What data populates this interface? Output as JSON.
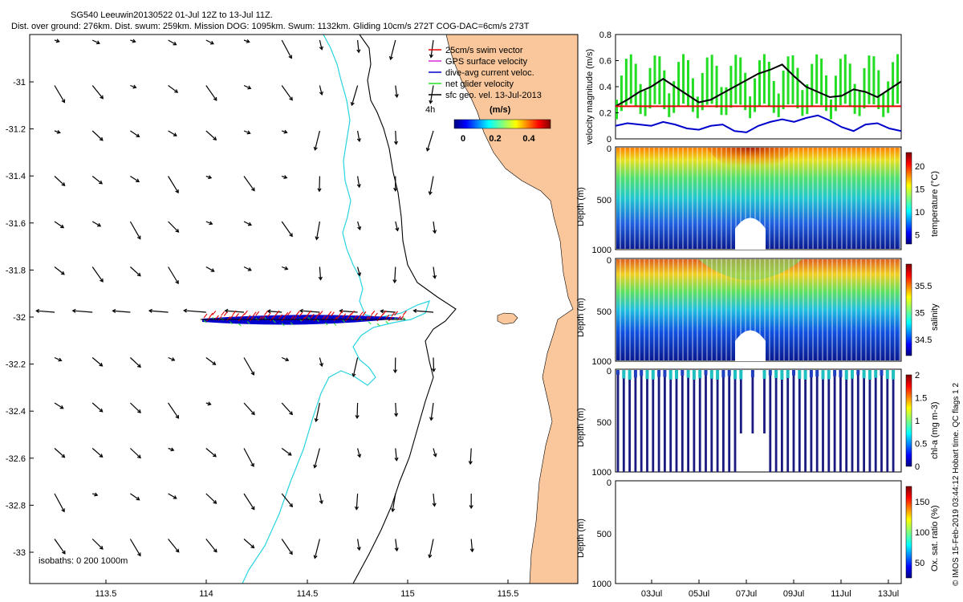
{
  "header": {
    "title": "SG540 Leeuwin20130522 01-Jul 12Z to 13-Jul 11Z.",
    "subtitle": "Dist. over ground: 276km. Dist. swum: 259km. Mission DOG: 1095km. Swum: 1132km. Gliding 10cm/s 272T COG-DAC=6cm/s 273T"
  },
  "credit": "© IMOS 15-Feb-2019 03:44:12 Hobart time. QC flags 1  2",
  "colors": {
    "land": "#f9c79b",
    "isobath200": "#27d3e0",
    "isobath1000": "#000000",
    "swim": "#e60000",
    "gps": "#d52bd5",
    "dac": "#0000cc",
    "net": "#22dd22",
    "sfc": "#000000"
  },
  "map": {
    "legend": {
      "items": [
        {
          "label": "25cm/s swim vector",
          "color": "#e60000"
        },
        {
          "label": "GPS surface velocity",
          "color": "#d52bd5"
        },
        {
          "label": "dive-avg current veloc.",
          "color": "#0000cc"
        },
        {
          "label": "net glider velocity",
          "color": "#22dd22"
        },
        {
          "label": "sfc geo. vel. 13-Jul-2013",
          "color": "#000000"
        }
      ],
      "interval": "4h",
      "colorbar_title": "(m/s)",
      "colorbar_ticks": [
        "0",
        "0.2",
        "0.4"
      ]
    },
    "isobaths_note": "isobaths: 0   200  1000m",
    "xticks": [
      "113.5",
      "114",
      "114.5",
      "115",
      "115.5"
    ],
    "yticks": [
      "-31",
      "-31.2",
      "-31.4",
      "-31.6",
      "-31.8",
      "-32",
      "-32.2",
      "-32.4",
      "-32.6",
      "-32.8",
      "-33"
    ]
  },
  "chart_data": [
    {
      "type": "line",
      "ylabel": "velocity magnitude (m/s)",
      "ylim": [
        0,
        0.8
      ],
      "yticks": [
        "0",
        "0.2",
        "0.4",
        "0.6",
        "0.8"
      ],
      "x_day": [
        1.5,
        2.0,
        2.5,
        3.0,
        3.5,
        4.0,
        4.5,
        5.0,
        5.5,
        6.0,
        6.5,
        7.0,
        7.5,
        8.0,
        8.5,
        9.0,
        9.5,
        10.0,
        10.5,
        11.0,
        11.5,
        12.0,
        12.5,
        13.0,
        13.5
      ],
      "series": [
        {
          "color": "#000000",
          "values": [
            0.25,
            0.3,
            0.36,
            0.4,
            0.46,
            0.4,
            0.34,
            0.28,
            0.3,
            0.35,
            0.4,
            0.45,
            0.5,
            0.53,
            0.57,
            0.48,
            0.4,
            0.36,
            0.32,
            0.33,
            0.38,
            0.36,
            0.32,
            0.38,
            0.44
          ]
        },
        {
          "color": "#0000cc",
          "values": [
            0.1,
            0.12,
            0.11,
            0.1,
            0.13,
            0.11,
            0.08,
            0.07,
            0.1,
            0.11,
            0.06,
            0.05,
            0.1,
            0.13,
            0.15,
            0.13,
            0.16,
            0.18,
            0.14,
            0.09,
            0.06,
            0.11,
            0.12,
            0.08,
            0.06
          ]
        },
        {
          "color": "#e60000",
          "values": [
            0.25,
            0.25,
            0.25,
            0.25,
            0.25,
            0.25,
            0.25,
            0.25,
            0.25,
            0.25,
            0.25,
            0.25,
            0.25,
            0.25,
            0.25,
            0.25,
            0.25,
            0.25,
            0.25,
            0.25,
            0.25,
            0.25,
            0.25,
            0.25,
            0.25
          ]
        }
      ]
    },
    {
      "type": "scatter",
      "ylabel": "Depth (m)",
      "ylim": [
        1000,
        0
      ],
      "yticks": [
        "0",
        "500",
        "1000"
      ],
      "colorbar_label": "temperature (°C)",
      "colorbar_ticks": [
        "5",
        "10",
        "15",
        "20"
      ]
    },
    {
      "type": "scatter",
      "ylabel": "Depth (m)",
      "ylim": [
        1000,
        0
      ],
      "yticks": [
        "0",
        "500",
        "1000"
      ],
      "colorbar_label": "salinity",
      "colorbar_ticks": [
        "34.5",
        "35",
        "35.5"
      ]
    },
    {
      "type": "scatter",
      "ylabel": "Depth (m)",
      "ylim": [
        1000,
        0
      ],
      "yticks": [
        "0",
        "500",
        "1000"
      ],
      "colorbar_label": "chl-a (mg m-3)",
      "colorbar_ticks": [
        "0",
        "0.5",
        "1",
        "1.5",
        "2"
      ]
    },
    {
      "type": "scatter",
      "ylabel": "Depth (m)",
      "ylim": [
        1000,
        0
      ],
      "yticks": [
        "0",
        "500",
        "1000"
      ],
      "colorbar_label": "Ox. sat. ratio (%)",
      "colorbar_ticks": [
        "50",
        "100",
        "150"
      ],
      "xticks": [
        "03Jul",
        "05Jul",
        "07Jul",
        "09Jul",
        "11Jul",
        "13Jul"
      ]
    }
  ]
}
